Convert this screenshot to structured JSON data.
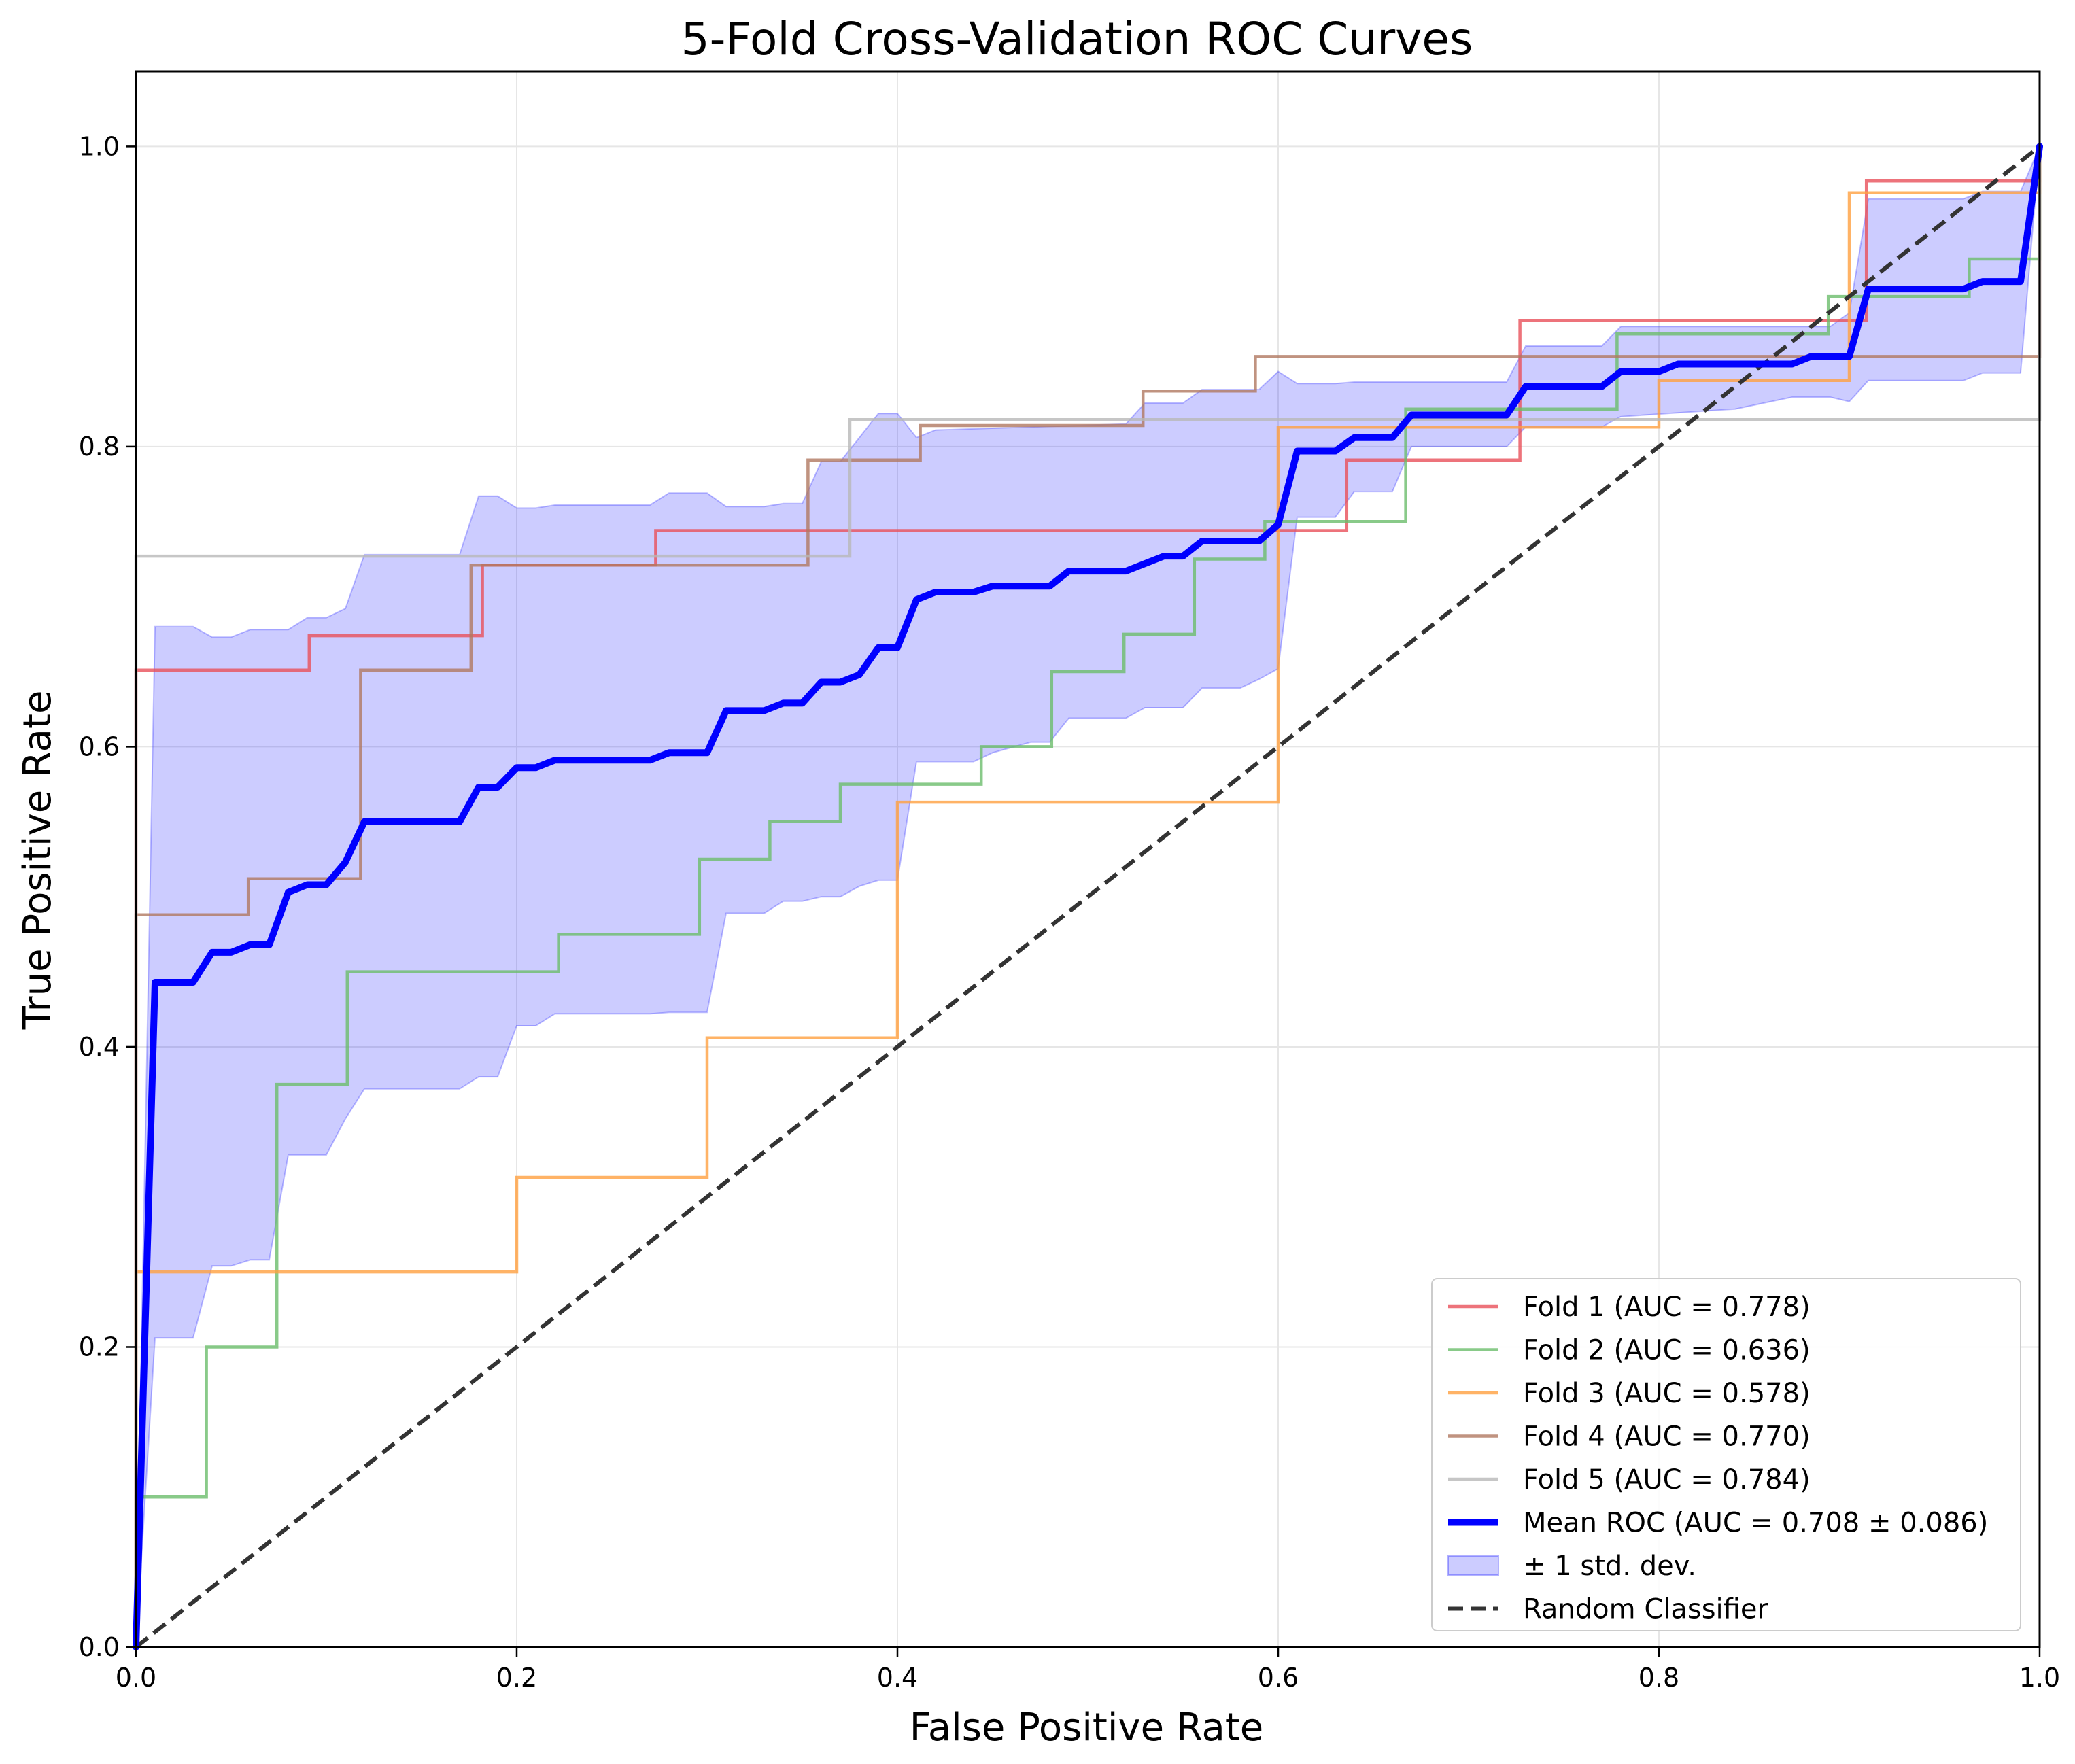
{
  "chart_data": {
    "type": "line",
    "title": "5-Fold Cross-Validation ROC Curves",
    "xlabel": "False Positive Rate",
    "ylabel": "True Positive Rate",
    "xlim": [
      0.0,
      1.0
    ],
    "ylim": [
      0.0,
      1.05
    ],
    "x_ticks": [
      "0.0",
      "0.2",
      "0.4",
      "0.6",
      "0.8",
      "1.0"
    ],
    "y_ticks": [
      "0.0",
      "0.2",
      "0.4",
      "0.6",
      "0.8",
      "1.0"
    ],
    "grid": true,
    "legend_position": "lower-right",
    "series": [
      {
        "name": "Fold 1 (AUC = 0.778)",
        "color": "#e8505a",
        "style": "step",
        "points": [
          [
            0,
            0
          ],
          [
            0,
            0.651
          ],
          [
            0.091,
            0.651
          ],
          [
            0.091,
            0.674
          ],
          [
            0.182,
            0.674
          ],
          [
            0.182,
            0.721
          ],
          [
            0.273,
            0.721
          ],
          [
            0.273,
            0.744
          ],
          [
            0.636,
            0.744
          ],
          [
            0.636,
            0.791
          ],
          [
            0.727,
            0.791
          ],
          [
            0.727,
            0.884
          ],
          [
            0.909,
            0.884
          ],
          [
            0.909,
            0.977
          ],
          [
            1.0,
            0.977
          ],
          [
            1.0,
            1.0
          ]
        ]
      },
      {
        "name": "Fold 2 (AUC = 0.636)",
        "color": "#6cbd6c",
        "style": "step",
        "points": [
          [
            0,
            0
          ],
          [
            0,
            0.1
          ],
          [
            0.037,
            0.1
          ],
          [
            0.037,
            0.2
          ],
          [
            0.074,
            0.2
          ],
          [
            0.074,
            0.375
          ],
          [
            0.111,
            0.375
          ],
          [
            0.111,
            0.45
          ],
          [
            0.222,
            0.45
          ],
          [
            0.222,
            0.475
          ],
          [
            0.296,
            0.475
          ],
          [
            0.296,
            0.525
          ],
          [
            0.333,
            0.525
          ],
          [
            0.333,
            0.55
          ],
          [
            0.37,
            0.55
          ],
          [
            0.37,
            0.575
          ],
          [
            0.444,
            0.575
          ],
          [
            0.444,
            0.6
          ],
          [
            0.481,
            0.6
          ],
          [
            0.481,
            0.65
          ],
          [
            0.519,
            0.65
          ],
          [
            0.519,
            0.675
          ],
          [
            0.556,
            0.675
          ],
          [
            0.556,
            0.725
          ],
          [
            0.593,
            0.725
          ],
          [
            0.593,
            0.75
          ],
          [
            0.667,
            0.75
          ],
          [
            0.667,
            0.825
          ],
          [
            0.778,
            0.825
          ],
          [
            0.778,
            0.875
          ],
          [
            0.889,
            0.875
          ],
          [
            0.889,
            0.9
          ],
          [
            0.963,
            0.9
          ],
          [
            0.963,
            0.925
          ],
          [
            1.0,
            0.925
          ],
          [
            1.0,
            1.0
          ]
        ]
      },
      {
        "name": "Fold 3 (AUC = 0.578)",
        "color": "#ffa040",
        "style": "step",
        "points": [
          [
            0,
            0
          ],
          [
            0,
            0.25
          ],
          [
            0.2,
            0.25
          ],
          [
            0.2,
            0.313
          ],
          [
            0.3,
            0.313
          ],
          [
            0.3,
            0.406
          ],
          [
            0.4,
            0.406
          ],
          [
            0.4,
            0.563
          ],
          [
            0.6,
            0.563
          ],
          [
            0.6,
            0.813
          ],
          [
            0.8,
            0.813
          ],
          [
            0.8,
            0.844
          ],
          [
            0.9,
            0.844
          ],
          [
            0.9,
            0.969
          ],
          [
            1.0,
            0.969
          ],
          [
            1.0,
            1.0
          ]
        ]
      },
      {
        "name": "Fold 4 (AUC = 0.770)",
        "color": "#b07860",
        "style": "step",
        "points": [
          [
            0,
            0
          ],
          [
            0,
            0.488
          ],
          [
            0.059,
            0.488
          ],
          [
            0.059,
            0.512
          ],
          [
            0.118,
            0.512
          ],
          [
            0.118,
            0.651
          ],
          [
            0.176,
            0.651
          ],
          [
            0.176,
            0.721
          ],
          [
            0.353,
            0.721
          ],
          [
            0.353,
            0.791
          ],
          [
            0.412,
            0.791
          ],
          [
            0.412,
            0.814
          ],
          [
            0.529,
            0.814
          ],
          [
            0.529,
            0.837
          ],
          [
            0.588,
            0.837
          ],
          [
            0.588,
            0.86
          ],
          [
            1.0,
            0.86
          ],
          [
            1.0,
            1.0
          ]
        ]
      },
      {
        "name": "Fold 5 (AUC = 0.784)",
        "color": "#b8b8b8",
        "style": "step",
        "points": [
          [
            0,
            0
          ],
          [
            0,
            0.727
          ],
          [
            0.375,
            0.727
          ],
          [
            0.375,
            0.818
          ],
          [
            1.0,
            0.818
          ],
          [
            1.0,
            1.0
          ]
        ]
      }
    ],
    "mean": {
      "name": "Mean ROC (AUC = 0.708 ± 0.086)",
      "color": "#0000ff",
      "points": [
        [
          0,
          0
        ],
        [
          0.01,
          0.443
        ],
        [
          0.03,
          0.443
        ],
        [
          0.04,
          0.463
        ],
        [
          0.05,
          0.463
        ],
        [
          0.06,
          0.468
        ],
        [
          0.07,
          0.468
        ],
        [
          0.08,
          0.503
        ],
        [
          0.09,
          0.508
        ],
        [
          0.1,
          0.508
        ],
        [
          0.11,
          0.523
        ],
        [
          0.12,
          0.55
        ],
        [
          0.17,
          0.55
        ],
        [
          0.18,
          0.573
        ],
        [
          0.19,
          0.573
        ],
        [
          0.2,
          0.586
        ],
        [
          0.21,
          0.586
        ],
        [
          0.22,
          0.591
        ],
        [
          0.27,
          0.591
        ],
        [
          0.28,
          0.596
        ],
        [
          0.3,
          0.596
        ],
        [
          0.31,
          0.624
        ],
        [
          0.33,
          0.624
        ],
        [
          0.34,
          0.629
        ],
        [
          0.35,
          0.629
        ],
        [
          0.36,
          0.643
        ],
        [
          0.37,
          0.643
        ],
        [
          0.38,
          0.648
        ],
        [
          0.39,
          0.666
        ],
        [
          0.4,
          0.666
        ],
        [
          0.41,
          0.698
        ],
        [
          0.42,
          0.703
        ],
        [
          0.43,
          0.703
        ],
        [
          0.44,
          0.703
        ],
        [
          0.45,
          0.707
        ],
        [
          0.47,
          0.707
        ],
        [
          0.48,
          0.707
        ],
        [
          0.49,
          0.717
        ],
        [
          0.52,
          0.717
        ],
        [
          0.53,
          0.722
        ],
        [
          0.54,
          0.727
        ],
        [
          0.55,
          0.727
        ],
        [
          0.56,
          0.737
        ],
        [
          0.58,
          0.737
        ],
        [
          0.59,
          0.737
        ],
        [
          0.6,
          0.748
        ],
        [
          0.61,
          0.797
        ],
        [
          0.63,
          0.797
        ],
        [
          0.64,
          0.806
        ],
        [
          0.66,
          0.806
        ],
        [
          0.67,
          0.821
        ],
        [
          0.72,
          0.821
        ],
        [
          0.73,
          0.84
        ],
        [
          0.76,
          0.84
        ],
        [
          0.77,
          0.84
        ],
        [
          0.78,
          0.85
        ],
        [
          0.79,
          0.85
        ],
        [
          0.8,
          0.85
        ],
        [
          0.81,
          0.855
        ],
        [
          0.83,
          0.855
        ],
        [
          0.84,
          0.855
        ],
        [
          0.86,
          0.855
        ],
        [
          0.87,
          0.855
        ],
        [
          0.88,
          0.86
        ],
        [
          0.89,
          0.86
        ],
        [
          0.9,
          0.86
        ],
        [
          0.91,
          0.905
        ],
        [
          0.96,
          0.905
        ],
        [
          0.97,
          0.91
        ],
        [
          0.99,
          0.91
        ],
        [
          1.0,
          1.0
        ]
      ]
    },
    "band": {
      "name": "± 1 std. dev.",
      "color": "#0000ff",
      "opacity": 0.2,
      "upper": [
        [
          0,
          0.01
        ],
        [
          0.01,
          0.68
        ],
        [
          0.03,
          0.68
        ],
        [
          0.04,
          0.673
        ],
        [
          0.05,
          0.673
        ],
        [
          0.06,
          0.678
        ],
        [
          0.07,
          0.678
        ],
        [
          0.08,
          0.678
        ],
        [
          0.09,
          0.686
        ],
        [
          0.1,
          0.686
        ],
        [
          0.11,
          0.692
        ],
        [
          0.12,
          0.728
        ],
        [
          0.17,
          0.728
        ],
        [
          0.18,
          0.767
        ],
        [
          0.19,
          0.767
        ],
        [
          0.2,
          0.759
        ],
        [
          0.21,
          0.759
        ],
        [
          0.22,
          0.761
        ],
        [
          0.27,
          0.761
        ],
        [
          0.28,
          0.769
        ],
        [
          0.3,
          0.769
        ],
        [
          0.31,
          0.76
        ],
        [
          0.33,
          0.76
        ],
        [
          0.34,
          0.762
        ],
        [
          0.35,
          0.762
        ],
        [
          0.36,
          0.79
        ],
        [
          0.37,
          0.79
        ],
        [
          0.38,
          0.806
        ],
        [
          0.39,
          0.822
        ],
        [
          0.4,
          0.822
        ],
        [
          0.41,
          0.806
        ],
        [
          0.42,
          0.811
        ],
        [
          0.52,
          0.815
        ],
        [
          0.53,
          0.829
        ],
        [
          0.55,
          0.829
        ],
        [
          0.56,
          0.838
        ],
        [
          0.59,
          0.838
        ],
        [
          0.6,
          0.85
        ],
        [
          0.61,
          0.842
        ],
        [
          0.63,
          0.842
        ],
        [
          0.64,
          0.843
        ],
        [
          0.66,
          0.843
        ],
        [
          0.67,
          0.843
        ],
        [
          0.72,
          0.843
        ],
        [
          0.73,
          0.867
        ],
        [
          0.77,
          0.867
        ],
        [
          0.78,
          0.88
        ],
        [
          0.89,
          0.88
        ],
        [
          0.9,
          0.889
        ],
        [
          0.91,
          0.965
        ],
        [
          0.96,
          0.965
        ],
        [
          0.97,
          0.97
        ],
        [
          0.99,
          0.97
        ],
        [
          1.0,
          1.0
        ]
      ],
      "lower": [
        [
          0,
          0
        ],
        [
          0.01,
          0.206
        ],
        [
          0.03,
          0.206
        ],
        [
          0.04,
          0.254
        ],
        [
          0.05,
          0.254
        ],
        [
          0.06,
          0.258
        ],
        [
          0.07,
          0.258
        ],
        [
          0.08,
          0.328
        ],
        [
          0.1,
          0.328
        ],
        [
          0.11,
          0.352
        ],
        [
          0.12,
          0.372
        ],
        [
          0.17,
          0.372
        ],
        [
          0.18,
          0.38
        ],
        [
          0.19,
          0.38
        ],
        [
          0.2,
          0.414
        ],
        [
          0.21,
          0.414
        ],
        [
          0.22,
          0.422
        ],
        [
          0.27,
          0.422
        ],
        [
          0.28,
          0.423
        ],
        [
          0.3,
          0.423
        ],
        [
          0.31,
          0.489
        ],
        [
          0.33,
          0.489
        ],
        [
          0.34,
          0.497
        ],
        [
          0.35,
          0.497
        ],
        [
          0.36,
          0.5
        ],
        [
          0.37,
          0.5
        ],
        [
          0.38,
          0.507
        ],
        [
          0.39,
          0.511
        ],
        [
          0.4,
          0.511
        ],
        [
          0.41,
          0.59
        ],
        [
          0.44,
          0.59
        ],
        [
          0.45,
          0.596
        ],
        [
          0.47,
          0.603
        ],
        [
          0.48,
          0.603
        ],
        [
          0.49,
          0.619
        ],
        [
          0.52,
          0.619
        ],
        [
          0.53,
          0.626
        ],
        [
          0.55,
          0.626
        ],
        [
          0.56,
          0.639
        ],
        [
          0.58,
          0.639
        ],
        [
          0.59,
          0.645
        ],
        [
          0.6,
          0.652
        ],
        [
          0.61,
          0.753
        ],
        [
          0.63,
          0.753
        ],
        [
          0.64,
          0.77
        ],
        [
          0.66,
          0.77
        ],
        [
          0.67,
          0.8
        ],
        [
          0.72,
          0.8
        ],
        [
          0.73,
          0.813
        ],
        [
          0.77,
          0.813
        ],
        [
          0.78,
          0.82
        ],
        [
          0.84,
          0.825
        ],
        [
          0.87,
          0.833
        ],
        [
          0.89,
          0.833
        ],
        [
          0.9,
          0.83
        ],
        [
          0.91,
          0.844
        ],
        [
          0.96,
          0.844
        ],
        [
          0.97,
          0.849
        ],
        [
          0.99,
          0.849
        ],
        [
          1.0,
          1.0
        ]
      ]
    },
    "baseline": {
      "name": "Random Classifier",
      "color": "#333333",
      "style": "dashed",
      "points": [
        [
          0,
          0
        ],
        [
          1,
          1
        ]
      ]
    }
  }
}
